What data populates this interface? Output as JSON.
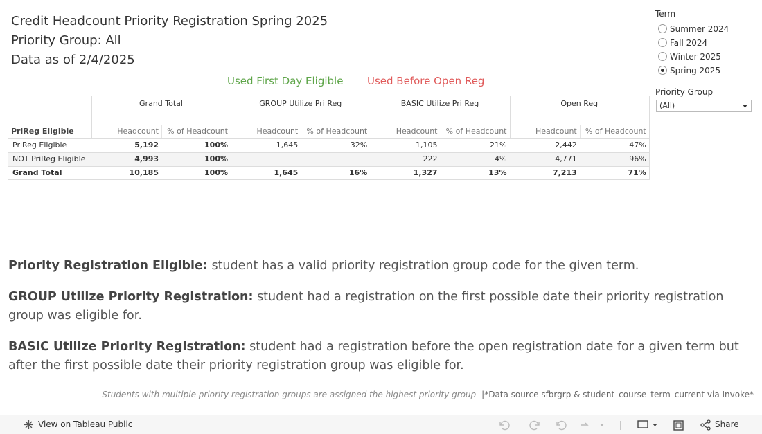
{
  "header": {
    "title_lines": [
      "Credit Headcount Priority Registration Spring 2025",
      "Priority Group: All",
      "Data as of 2/4/2025"
    ]
  },
  "legend": [
    {
      "label": "Used First Day Eligible",
      "color": "#5ea549"
    },
    {
      "label": "Used Before Open Reg",
      "color": "#e05a5a"
    }
  ],
  "table": {
    "row_header": "PriReg Eligible",
    "column_groups": [
      "Grand Total",
      "GROUP Utilize Pri Reg",
      "BASIC Utilize Pri Reg",
      "Open Reg"
    ],
    "subheaders": [
      "Headcount",
      "% of Headcount"
    ],
    "rows": [
      {
        "label": "PriReg Eligible",
        "cells": [
          "5,192",
          "100%",
          "1,645",
          "32%",
          "1,105",
          "21%",
          "2,442",
          "47%"
        ]
      },
      {
        "label": "NOT PriReg Eligible",
        "cells": [
          "4,993",
          "100%",
          null,
          null,
          "222",
          "4%",
          "4,771",
          "96%"
        ]
      },
      {
        "label": "Grand Total",
        "cells": [
          "10,185",
          "100%",
          "1,645",
          "16%",
          "1,327",
          "13%",
          "7,213",
          "71%"
        ]
      }
    ]
  },
  "filters": {
    "term": {
      "label": "Term",
      "options": [
        "Summer 2024",
        "Fall 2024",
        "Winter 2025",
        "Spring 2025"
      ],
      "selected_index": 3
    },
    "priority_group": {
      "label": "Priority Group",
      "value": "(All)"
    }
  },
  "definitions": [
    {
      "term": "Priority Registration Eligible:",
      "text": "student has a valid priority registration group code for the given term."
    },
    {
      "term": "GROUP Utilize Priority Registration:",
      "text": "student had a registration on the first possible date their priority registration group was eligible for."
    },
    {
      "term": "BASIC Utilize Priority Registration:",
      "text": "student had a registration before the open registration date for a given term but after the first possible date their priority registration group was eligible for."
    }
  ],
  "footnote": {
    "note": "Students with multiple priority registration groups are assigned the highest priority group",
    "source": "|*Data source sfbrgrp & student_course_term_current via Invoke*"
  },
  "toolbar": {
    "view_link": "View on Tableau Public",
    "share": "Share"
  }
}
